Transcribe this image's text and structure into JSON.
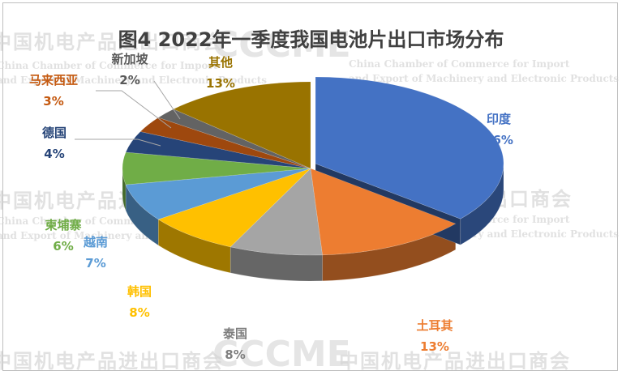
{
  "watermark": {
    "org_cn": "中国机电产品进出口商会",
    "org_en_line1": "China Chamber of Commerce for Import",
    "org_en_line2": "and Export of Machinery and Electronic Products",
    "logo_text": "CCCME"
  },
  "chart_data": {
    "type": "pie",
    "style": "3d-exploded",
    "title": "图4  2022年一季度我国电池片出口市场分布",
    "slices": [
      {
        "label": "印度",
        "value": 36,
        "display": "36%",
        "color": "#4472C4"
      },
      {
        "label": "土耳其",
        "value": 13,
        "display": "13%",
        "color": "#ED7D31"
      },
      {
        "label": "泰国",
        "value": 8,
        "display": "8%",
        "color": "#A5A5A5"
      },
      {
        "label": "韩国",
        "value": 8,
        "display": "8%",
        "color": "#FFC000"
      },
      {
        "label": "越南",
        "value": 7,
        "display": "7%",
        "color": "#5B9BD5"
      },
      {
        "label": "柬埔寨",
        "value": 6,
        "display": "6%",
        "color": "#70AD47"
      },
      {
        "label": "德国",
        "value": 4,
        "display": "4%",
        "color": "#264478"
      },
      {
        "label": "马来西亚",
        "value": 3,
        "display": "3%",
        "color": "#9E480E"
      },
      {
        "label": "新加坡",
        "value": 2,
        "display": "2%",
        "color": "#636363"
      },
      {
        "label": "其他",
        "value": 13,
        "display": "13%",
        "color": "#997300"
      }
    ]
  }
}
